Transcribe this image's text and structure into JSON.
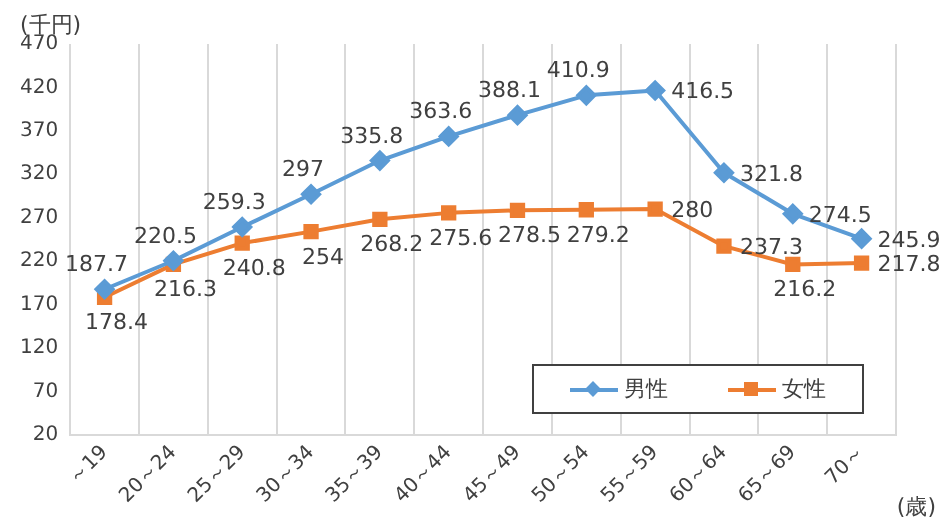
{
  "chart_data": {
    "type": "line",
    "ylabel": "(千円)",
    "xlabel": "(歳)",
    "categories": [
      "～19",
      "20～24",
      "25～29",
      "30～34",
      "35～39",
      "40～44",
      "45～49",
      "50～54",
      "55～59",
      "60～64",
      "65～69",
      "70～"
    ],
    "series": [
      {
        "name": "男性",
        "color": "#5b9bd5",
        "marker": "diamond",
        "values": [
          187.7,
          220.5,
          259.3,
          297,
          335.8,
          363.6,
          388.1,
          410.9,
          416.5,
          321.8,
          274.5,
          245.9
        ]
      },
      {
        "name": "女性",
        "color": "#ed7d31",
        "marker": "square",
        "values": [
          178.4,
          216.3,
          240.8,
          254,
          268.2,
          275.6,
          278.5,
          279.2,
          280,
          237.3,
          216.2,
          217.8
        ]
      }
    ],
    "ylim": [
      20,
      470
    ],
    "yticks": [
      20,
      70,
      120,
      170,
      220,
      270,
      320,
      370,
      420,
      470
    ],
    "grid": "x",
    "legend": "bottom right",
    "data_labels": true,
    "line_style": "solid"
  }
}
